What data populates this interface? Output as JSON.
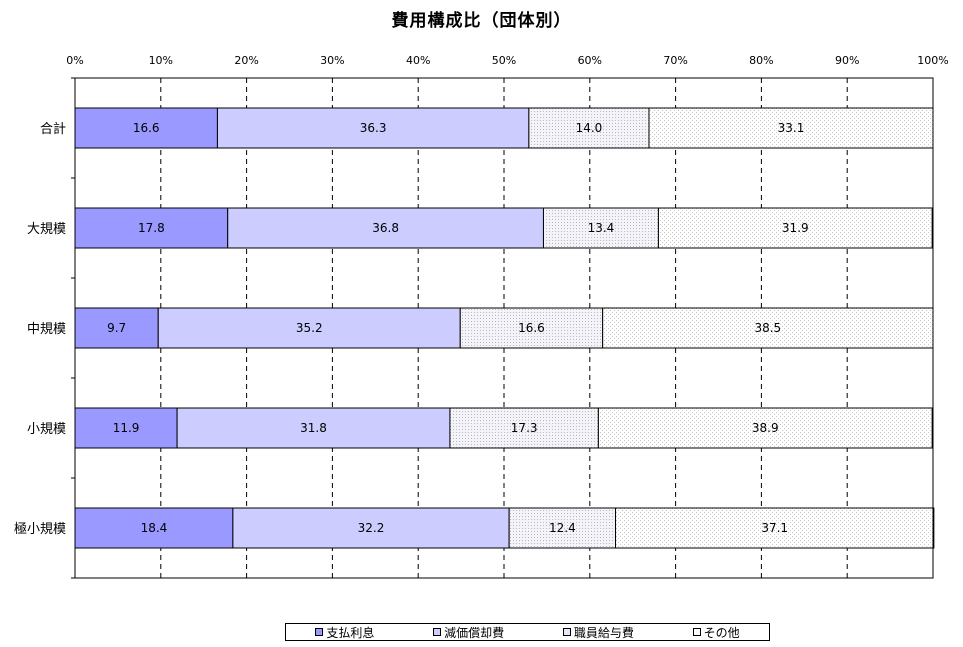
{
  "chart_data": {
    "type": "bar",
    "orientation": "horizontal",
    "stacked": "percent",
    "title": "費用構成比（団体別）",
    "xlabel": "",
    "ylabel": "",
    "xlim": [
      0,
      100
    ],
    "x_ticks": [
      "0%",
      "10%",
      "20%",
      "30%",
      "40%",
      "50%",
      "60%",
      "70%",
      "80%",
      "90%",
      "100%"
    ],
    "categories": [
      "合計",
      "大規模",
      "中規模",
      "小規模",
      "極小規模"
    ],
    "series": [
      {
        "name": "支払利息",
        "values": [
          16.6,
          17.8,
          9.7,
          11.9,
          18.4
        ],
        "color": "#9999ff"
      },
      {
        "name": "減価償却費",
        "values": [
          36.3,
          36.8,
          35.2,
          31.8,
          32.2
        ],
        "color": "#ccccff"
      },
      {
        "name": "職員給与費",
        "values": [
          14.0,
          13.4,
          16.6,
          17.3,
          12.4
        ],
        "color": "#e6e6f5"
      },
      {
        "name": "その他",
        "values": [
          33.1,
          31.9,
          38.5,
          38.9,
          37.1
        ],
        "color": "#f7f7f7"
      }
    ],
    "data_labels": [
      [
        "16.6",
        "17.8",
        "9.7",
        "11.9",
        "18.4"
      ],
      [
        "36.3",
        "36.8",
        "35.2",
        "31.8",
        "32.2"
      ],
      [
        "14.0",
        "13.4",
        "16.6",
        "17.3",
        "12.4"
      ],
      [
        "33.1",
        "31.9",
        "38.5",
        "38.9",
        "37.1"
      ]
    ],
    "grid": true,
    "legend_position": "bottom"
  }
}
